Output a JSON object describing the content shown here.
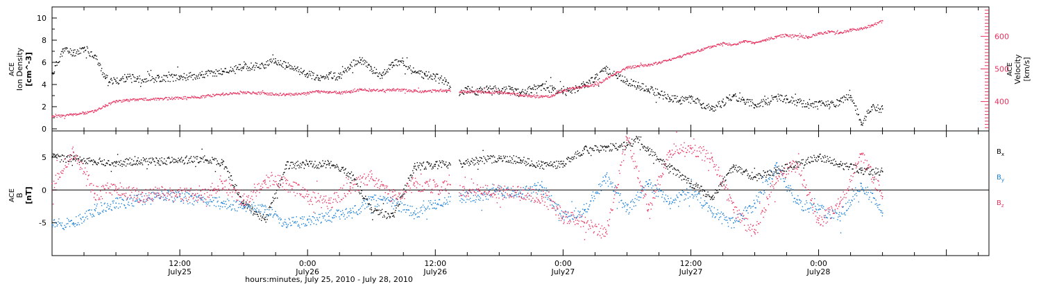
{
  "chart_data": [
    {
      "panel": "top",
      "type": "scatter",
      "x_range": [
        0,
        88
      ],
      "x_unit_note": "hours since July 25 00:00",
      "y_left": {
        "label_line1": "ACE",
        "label_line2": "Ion Density",
        "label_line3": "[cm^-3]",
        "range": [
          0,
          11
        ],
        "ticks": [
          "0",
          "2",
          "4",
          "6",
          "8",
          "10"
        ]
      },
      "y_right": {
        "label_line1": "ACE",
        "label_line2": "Velocity",
        "label_line3": "[km/s]",
        "range": [
          310,
          690
        ],
        "ticks": [
          "400",
          "500",
          "600"
        ],
        "color": "#e8305e"
      },
      "series": [
        {
          "color": "#000000",
          "axis": "left",
          "points": [
            [
              0,
              5.0
            ],
            [
              1,
              7.2
            ],
            [
              2,
              6.9
            ],
            [
              3,
              7.3
            ],
            [
              4,
              6.6
            ],
            [
              5,
              4.6
            ],
            [
              6,
              4.3
            ],
            [
              7,
              4.7
            ],
            [
              8,
              4.5
            ],
            [
              10,
              4.6
            ],
            [
              12,
              4.7
            ],
            [
              14,
              4.9
            ],
            [
              16,
              5.2
            ],
            [
              18,
              5.6
            ],
            [
              20,
              5.8
            ],
            [
              21,
              6.1
            ],
            [
              22,
              5.7
            ],
            [
              24,
              5.0
            ],
            [
              25,
              4.6
            ],
            [
              26,
              4.9
            ],
            [
              27,
              4.7
            ],
            [
              28,
              5.8
            ],
            [
              29,
              6.2
            ],
            [
              30,
              5.4
            ],
            [
              31,
              4.8
            ],
            [
              32,
              6.0
            ],
            [
              33,
              6.1
            ],
            [
              34,
              5.1
            ],
            [
              35,
              4.9
            ],
            [
              36,
              4.7
            ],
            [
              37,
              4.3
            ],
            [
              38,
              3.3
            ],
            [
              39,
              3.6
            ],
            [
              40,
              3.4
            ],
            [
              41,
              3.7
            ],
            [
              42,
              3.5
            ],
            [
              43,
              3.6
            ],
            [
              44,
              3.2
            ],
            [
              45,
              3.6
            ],
            [
              46,
              3.9
            ],
            [
              47,
              3.6
            ],
            [
              48,
              3.3
            ],
            [
              49,
              3.6
            ],
            [
              50,
              4.0
            ],
            [
              51,
              4.6
            ],
            [
              52,
              5.4
            ],
            [
              53,
              4.8
            ],
            [
              54,
              4.3
            ],
            [
              55,
              3.9
            ],
            [
              56,
              3.6
            ],
            [
              57,
              3.2
            ],
            [
              58,
              2.8
            ],
            [
              59,
              2.6
            ],
            [
              60,
              2.9
            ],
            [
              61,
              2.2
            ],
            [
              62,
              1.8
            ],
            [
              63,
              2.4
            ],
            [
              64,
              3.0
            ],
            [
              65,
              2.6
            ],
            [
              66,
              2.2
            ],
            [
              67,
              2.4
            ],
            [
              68,
              2.9
            ],
            [
              69,
              2.7
            ],
            [
              70,
              2.4
            ],
            [
              71,
              2.2
            ],
            [
              72,
              2.4
            ],
            [
              73,
              2.2
            ],
            [
              74,
              2.5
            ],
            [
              75,
              3.0
            ],
            [
              76,
              0.6
            ],
            [
              77,
              2.0
            ],
            [
              78,
              1.8
            ]
          ]
        },
        {
          "color": "#e8305e",
          "axis": "right",
          "points": [
            [
              0,
              355
            ],
            [
              1,
              358
            ],
            [
              2,
              362
            ],
            [
              3,
              366
            ],
            [
              4,
              372
            ],
            [
              5,
              390
            ],
            [
              6,
              402
            ],
            [
              7,
              405
            ],
            [
              8,
              407
            ],
            [
              10,
              410
            ],
            [
              12,
              412
            ],
            [
              14,
              416
            ],
            [
              16,
              424
            ],
            [
              18,
              429
            ],
            [
              20,
              426
            ],
            [
              22,
              422
            ],
            [
              24,
              428
            ],
            [
              25,
              432
            ],
            [
              26,
              430
            ],
            [
              27,
              428
            ],
            [
              28,
              432
            ],
            [
              29,
              438
            ],
            [
              30,
              436
            ],
            [
              31,
              434
            ],
            [
              32,
              438
            ],
            [
              33,
              436
            ],
            [
              34,
              434
            ],
            [
              35,
              432
            ],
            [
              36,
              435
            ],
            [
              37,
              436
            ],
            [
              38,
              433
            ],
            [
              39,
              432
            ],
            [
              40,
              431
            ],
            [
              41,
              430
            ],
            [
              42,
              429
            ],
            [
              43,
              425
            ],
            [
              44,
              422
            ],
            [
              45,
              418
            ],
            [
              46,
              416
            ],
            [
              47,
              418
            ],
            [
              48,
              435
            ],
            [
              49,
              442
            ],
            [
              50,
              448
            ],
            [
              51,
              452
            ],
            [
              52,
              470
            ],
            [
              53,
              490
            ],
            [
              54,
              505
            ],
            [
              55,
              510
            ],
            [
              56,
              513
            ],
            [
              57,
              520
            ],
            [
              58,
              530
            ],
            [
              59,
              540
            ],
            [
              60,
              550
            ],
            [
              61,
              560
            ],
            [
              62,
              570
            ],
            [
              63,
              580
            ],
            [
              64,
              575
            ],
            [
              65,
              585
            ],
            [
              66,
              580
            ],
            [
              67,
              590
            ],
            [
              68,
              600
            ],
            [
              69,
              605
            ],
            [
              70,
              602
            ],
            [
              71,
              598
            ],
            [
              72,
              610
            ],
            [
              73,
              615
            ],
            [
              74,
              612
            ],
            [
              75,
              620
            ],
            [
              76,
              625
            ],
            [
              77,
              635
            ],
            [
              78,
              648
            ]
          ]
        }
      ]
    },
    {
      "panel": "bottom",
      "type": "scatter",
      "x_range": [
        0,
        88
      ],
      "y": {
        "label_line1": "ACE",
        "label_line2": "B",
        "label_line3": "[nT]",
        "range": [
          -10,
          9
        ],
        "ticks": [
          "-5",
          "0",
          "5"
        ]
      },
      "legend": [
        {
          "label": "B",
          "sub": "x",
          "color": "#000000"
        },
        {
          "label": "B",
          "sub": "y",
          "color": "#1a7fd6"
        },
        {
          "label": "B",
          "sub": "z",
          "color": "#e8305e"
        }
      ],
      "series": [
        {
          "color": "#000000",
          "points": [
            [
              0,
              5.0
            ],
            [
              2,
              4.8
            ],
            [
              4,
              4.4
            ],
            [
              6,
              4.1
            ],
            [
              8,
              4.5
            ],
            [
              10,
              4.4
            ],
            [
              12,
              4.6
            ],
            [
              14,
              4.8
            ],
            [
              16,
              4.2
            ],
            [
              18,
              -2.0
            ],
            [
              20,
              -4.5
            ],
            [
              22,
              3.8
            ],
            [
              24,
              3.9
            ],
            [
              26,
              4.0
            ],
            [
              28,
              2.5
            ],
            [
              30,
              -3.0
            ],
            [
              32,
              -4.0
            ],
            [
              34,
              3.6
            ],
            [
              36,
              3.9
            ],
            [
              38,
              4.0
            ],
            [
              40,
              4.5
            ],
            [
              42,
              4.9
            ],
            [
              44,
              4.6
            ],
            [
              46,
              3.8
            ],
            [
              48,
              4.0
            ],
            [
              50,
              6.2
            ],
            [
              52,
              6.5
            ],
            [
              54,
              6.8
            ],
            [
              55,
              7.8
            ],
            [
              56,
              6.0
            ],
            [
              58,
              3.5
            ],
            [
              60,
              1.0
            ],
            [
              62,
              -1.0
            ],
            [
              64,
              3.5
            ],
            [
              66,
              2.0
            ],
            [
              68,
              3.0
            ],
            [
              70,
              4.0
            ],
            [
              72,
              5.0
            ],
            [
              74,
              4.0
            ],
            [
              76,
              3.0
            ],
            [
              78,
              2.8
            ]
          ]
        },
        {
          "color": "#1a7fd6",
          "points": [
            [
              0,
              -5.3
            ],
            [
              2,
              -5.0
            ],
            [
              4,
              -3.0
            ],
            [
              6,
              -2.0
            ],
            [
              8,
              -1.5
            ],
            [
              10,
              -0.8
            ],
            [
              12,
              -1.0
            ],
            [
              14,
              -1.5
            ],
            [
              16,
              -2.0
            ],
            [
              18,
              -2.5
            ],
            [
              20,
              -3.0
            ],
            [
              22,
              -5.2
            ],
            [
              24,
              -4.5
            ],
            [
              26,
              -4.0
            ],
            [
              28,
              -3.5
            ],
            [
              30,
              -1.5
            ],
            [
              32,
              -2.0
            ],
            [
              34,
              -3.5
            ],
            [
              36,
              -2.0
            ],
            [
              38,
              -1.0
            ],
            [
              40,
              -0.8
            ],
            [
              42,
              -0.2
            ],
            [
              44,
              -0.5
            ],
            [
              46,
              0.5
            ],
            [
              48,
              -4.0
            ],
            [
              50,
              -3.0
            ],
            [
              52,
              2.0
            ],
            [
              54,
              -3.0
            ],
            [
              56,
              1.0
            ],
            [
              58,
              -2.0
            ],
            [
              60,
              0.0
            ],
            [
              62,
              -3.5
            ],
            [
              64,
              -5.0
            ],
            [
              66,
              -2.0
            ],
            [
              68,
              3.5
            ],
            [
              70,
              -2.0
            ],
            [
              72,
              -3.0
            ],
            [
              74,
              -4.0
            ],
            [
              76,
              1.0
            ],
            [
              78,
              -3.5
            ]
          ]
        },
        {
          "color": "#e8305e",
          "points": [
            [
              0,
              1.0
            ],
            [
              2,
              5.8
            ],
            [
              4,
              -0.5
            ],
            [
              6,
              0.5
            ],
            [
              8,
              -0.8
            ],
            [
              10,
              -0.5
            ],
            [
              12,
              -0.6
            ],
            [
              14,
              -0.8
            ],
            [
              16,
              1.0
            ],
            [
              18,
              -1.5
            ],
            [
              20,
              1.5
            ],
            [
              22,
              1.0
            ],
            [
              24,
              -1.0
            ],
            [
              26,
              -2.0
            ],
            [
              28,
              0.5
            ],
            [
              30,
              2.0
            ],
            [
              32,
              -1.0
            ],
            [
              34,
              1.0
            ],
            [
              36,
              0.5
            ],
            [
              38,
              0.2
            ],
            [
              40,
              0.0
            ],
            [
              42,
              -0.2
            ],
            [
              44,
              -0.5
            ],
            [
              46,
              -1.0
            ],
            [
              48,
              -4.0
            ],
            [
              50,
              -5.0
            ],
            [
              52,
              -6.5
            ],
            [
              54,
              8.0
            ],
            [
              56,
              -3.0
            ],
            [
              58,
              6.0
            ],
            [
              60,
              6.4
            ],
            [
              62,
              5.0
            ],
            [
              64,
              -3.0
            ],
            [
              66,
              -6.5
            ],
            [
              68,
              2.0
            ],
            [
              70,
              4.0
            ],
            [
              72,
              -5.0
            ],
            [
              74,
              -2.0
            ],
            [
              76,
              5.5
            ],
            [
              78,
              -1.0
            ]
          ]
        }
      ]
    }
  ],
  "x_axis": {
    "ticks": [
      {
        "hour": 12,
        "time": "12:00",
        "date": "July25"
      },
      {
        "hour": 24,
        "time": "0:00",
        "date": "July26"
      },
      {
        "hour": 36,
        "time": "12:00",
        "date": "July26"
      },
      {
        "hour": 48,
        "time": "0:00",
        "date": "July27"
      },
      {
        "hour": 60,
        "time": "12:00",
        "date": "July27"
      },
      {
        "hour": 72,
        "time": "0:00",
        "date": "July28"
      }
    ],
    "title": "hours:minutes, July 25, 2010 - July 28, 2010"
  }
}
